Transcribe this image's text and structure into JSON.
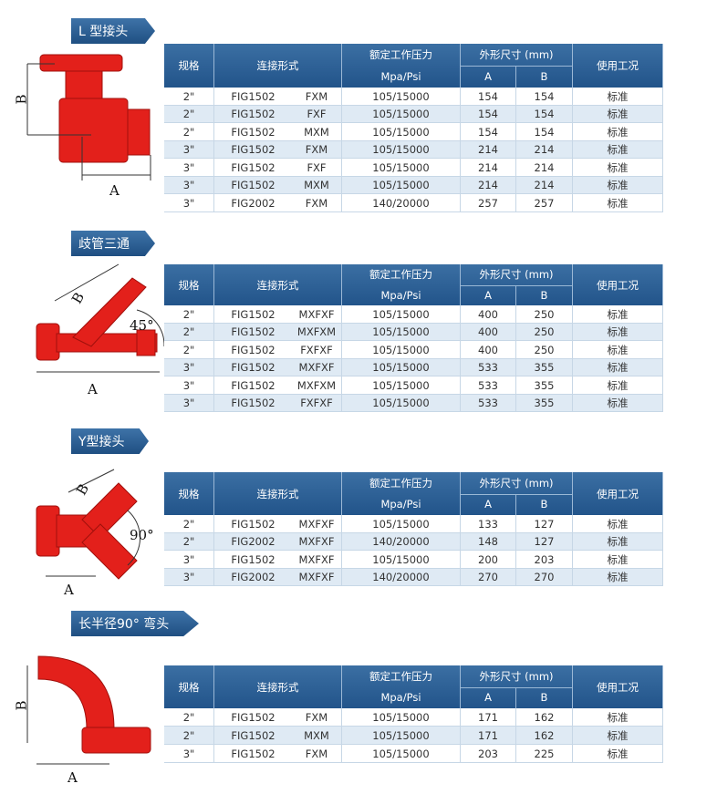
{
  "sections": [
    {
      "title": "L 型接头",
      "diagram": {
        "labels": [
          "B",
          "A"
        ]
      },
      "table": {
        "header": [
          "规格",
          "连接形式",
          "额定工作压力",
          "Mpa/Psi",
          "外形尺寸 (mm)",
          "A",
          "B",
          "使用工况"
        ],
        "rows": [
          [
            "2\"",
            "FIG1502",
            "FXM",
            "105/15000",
            154,
            154,
            "标准"
          ],
          [
            "2\"",
            "FIG1502",
            "FXF",
            "105/15000",
            154,
            154,
            "标准"
          ],
          [
            "2\"",
            "FIG1502",
            "MXM",
            "105/15000",
            154,
            154,
            "标准"
          ],
          [
            "3\"",
            "FIG1502",
            "FXM",
            "105/15000",
            214,
            214,
            "标准"
          ],
          [
            "3\"",
            "FIG1502",
            "FXF",
            "105/15000",
            214,
            214,
            "标准"
          ],
          [
            "3\"",
            "FIG1502",
            "MXM",
            "105/15000",
            214,
            214,
            "标准"
          ],
          [
            "3\"",
            "FIG2002",
            "FXM",
            "140/20000",
            257,
            257,
            "标准"
          ]
        ]
      }
    },
    {
      "title": "歧管三通",
      "diagram": {
        "labels": [
          "B",
          "45°",
          "A"
        ]
      },
      "table": {
        "header": [
          "规格",
          "连接形式",
          "额定工作压力",
          "Mpa/Psi",
          "外形尺寸 (mm)",
          "A",
          "B",
          "使用工况"
        ],
        "rows": [
          [
            "2\"",
            "FIG1502",
            "MXFXF",
            "105/15000",
            400,
            250,
            "标准"
          ],
          [
            "2\"",
            "FIG1502",
            "MXFXM",
            "105/15000",
            400,
            250,
            "标准"
          ],
          [
            "2\"",
            "FIG1502",
            "FXFXF",
            "105/15000",
            400,
            250,
            "标准"
          ],
          [
            "3\"",
            "FIG1502",
            "MXFXF",
            "105/15000",
            533,
            355,
            "标准"
          ],
          [
            "3\"",
            "FIG1502",
            "MXFXM",
            "105/15000",
            533,
            355,
            "标准"
          ],
          [
            "3\"",
            "FIG1502",
            "FXFXF",
            "105/15000",
            533,
            355,
            "标准"
          ]
        ]
      }
    },
    {
      "title": "Y型接头",
      "diagram": {
        "labels": [
          "B",
          "90°",
          "A"
        ]
      },
      "table": {
        "header": [
          "规格",
          "连接形式",
          "额定工作压力",
          "Mpa/Psi",
          "外形尺寸 (mm)",
          "A",
          "B",
          "使用工况"
        ],
        "rows": [
          [
            "2\"",
            "FIG1502",
            "MXFXF",
            "105/15000",
            133,
            127,
            "标准"
          ],
          [
            "2\"",
            "FIG2002",
            "MXFXF",
            "140/20000",
            148,
            127,
            "标准"
          ],
          [
            "3\"",
            "FIG1502",
            "MXFXF",
            "105/15000",
            200,
            203,
            "标准"
          ],
          [
            "3\"",
            "FIG2002",
            "MXFXF",
            "140/20000",
            270,
            270,
            "标准"
          ]
        ]
      }
    },
    {
      "title": "长半径90° 弯头",
      "diagram": {
        "labels": [
          "B",
          "A"
        ]
      },
      "table": {
        "header": [
          "规格",
          "连接形式",
          "额定工作压力",
          "Mpa/Psi",
          "外形尺寸 (mm)",
          "A",
          "B",
          "使用工况"
        ],
        "rows": [
          [
            "2\"",
            "FIG1502",
            "FXM",
            "105/15000",
            171,
            162,
            "标准"
          ],
          [
            "2\"",
            "FIG1502",
            "MXM",
            "105/15000",
            171,
            162,
            "标准"
          ],
          [
            "3\"",
            "FIG1502",
            "FXM",
            "105/15000",
            203,
            225,
            "标准"
          ]
        ]
      }
    }
  ]
}
